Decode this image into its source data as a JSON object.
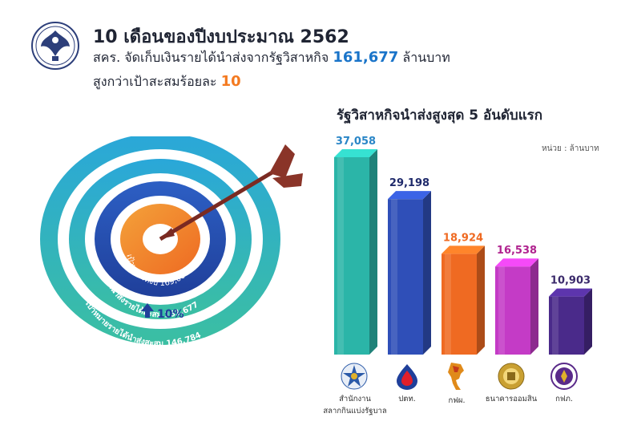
{
  "header": {
    "title": "10 เดือนของปีงบประมาณ 2562",
    "line2_prefix": "สคร. จัดเก็บเงินรายได้นำส่งจากรัฐวิสาหกิจ",
    "line2_value": "161,677",
    "line2_suffix": "ล้านบาท",
    "line3_prefix": "สูงกว่าเป้าสะสมร้อยละ",
    "line3_value": "10"
  },
  "target_graphic": {
    "inner_label": "เป้าหมายทั้งปี 169,000",
    "middle_label": "เงินนำส่งรายได้สะสม 161,677",
    "outer_label": "เป้าหมายรายได้นำส่งสะสม 146,784",
    "increase": "10%"
  },
  "chart_data": {
    "type": "bar",
    "title": "รัฐวิสาหกิจนำส่งสูงสุด 5 อันดับแรก",
    "unit_note": "หน่วย : ล้านบาท",
    "categories": [
      "สำนักงานสลากกินแบ่งรัฐบาล",
      "ปตท.",
      "กฟผ.",
      "ธนาคารออมสิน",
      "กฟภ."
    ],
    "values": [
      37058,
      29198,
      18924,
      16538,
      10903
    ],
    "value_labels": [
      "37,058",
      "29,198",
      "18,924",
      "16,538",
      "10,903"
    ],
    "colors": [
      "#2bb5a8",
      "#2f4fb8",
      "#ef6a22",
      "#c43bc6",
      "#4a2a8a"
    ],
    "label_colors": [
      "#2a86c7",
      "#1f2a6b",
      "#ef6a22",
      "#b0238f",
      "#3b2a6b"
    ]
  },
  "icons": [
    {
      "name": "glo-logo-icon",
      "caption_lines": [
        "สำนักงาน",
        "สลากกินแบ่งรัฐบาล"
      ]
    },
    {
      "name": "ptt-logo-icon",
      "caption_lines": [
        "ปตท."
      ]
    },
    {
      "name": "egat-thailand-map-icon",
      "caption_lines": [
        "กฟผ."
      ]
    },
    {
      "name": "gsb-logo-icon",
      "caption_lines": [
        "ธนาคารออมสิน"
      ]
    },
    {
      "name": "pea-logo-icon",
      "caption_lines": [
        "กฟภ."
      ]
    }
  ]
}
